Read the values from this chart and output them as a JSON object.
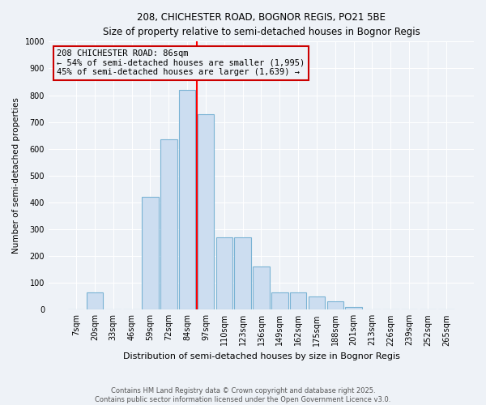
{
  "title1": "208, CHICHESTER ROAD, BOGNOR REGIS, PO21 5BE",
  "title2": "Size of property relative to semi-detached houses in Bognor Regis",
  "xlabel": "Distribution of semi-detached houses by size in Bognor Regis",
  "ylabel": "Number of semi-detached properties",
  "categories": [
    "7sqm",
    "20sqm",
    "33sqm",
    "46sqm",
    "59sqm",
    "72sqm",
    "84sqm",
    "97sqm",
    "110sqm",
    "123sqm",
    "136sqm",
    "149sqm",
    "162sqm",
    "175sqm",
    "188sqm",
    "201sqm",
    "213sqm",
    "226sqm",
    "239sqm",
    "252sqm",
    "265sqm"
  ],
  "values": [
    0,
    65,
    0,
    0,
    420,
    635,
    820,
    730,
    270,
    270,
    160,
    65,
    65,
    50,
    30,
    10,
    0,
    0,
    0,
    0,
    0
  ],
  "bar_color": "#ccddf0",
  "bar_edge_color": "#7ab3d4",
  "red_line_x": 6.5,
  "annotation_text": "208 CHICHESTER ROAD: 86sqm\n← 54% of semi-detached houses are smaller (1,995)\n45% of semi-detached houses are larger (1,639) →",
  "annotation_box_color": "#cc0000",
  "ylim": [
    0,
    1000
  ],
  "yticks": [
    0,
    100,
    200,
    300,
    400,
    500,
    600,
    700,
    800,
    900,
    1000
  ],
  "footer1": "Contains HM Land Registry data © Crown copyright and database right 2025.",
  "footer2": "Contains public sector information licensed under the Open Government Licence v3.0.",
  "bg_color": "#eef2f7",
  "grid_color": "#ffffff"
}
